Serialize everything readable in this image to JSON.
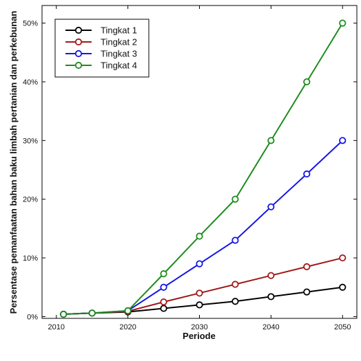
{
  "chart_data": {
    "type": "line",
    "xlabel": "Periode",
    "ylabel": "Persentase pemanfaatan bahan baku limbah pertanian dan perkebunan",
    "xlim": [
      2008,
      2052
    ],
    "ylim": [
      -0.3,
      53
    ],
    "xticks": [
      2010,
      2020,
      2030,
      2040,
      2050
    ],
    "yticks": [
      0,
      10,
      20,
      30,
      40,
      50
    ],
    "ytick_labels": [
      "0%",
      "10%",
      "20%",
      "30%",
      "40%",
      "50%"
    ],
    "legend_position": "top-left",
    "grid": false,
    "series": [
      {
        "name": "Tingkat 1",
        "color": "#000000",
        "x": [
          2011,
          2015,
          2020,
          2025,
          2030,
          2035,
          2040,
          2045,
          2050
        ],
        "values": [
          0.4,
          0.6,
          0.8,
          1.4,
          2.0,
          2.6,
          3.4,
          4.2,
          5.0
        ]
      },
      {
        "name": "Tingkat 2",
        "color": "#a01818",
        "x": [
          2011,
          2015,
          2020,
          2025,
          2030,
          2035,
          2040,
          2045,
          2050
        ],
        "values": [
          0.4,
          0.6,
          0.9,
          2.5,
          4.0,
          5.5,
          7.0,
          8.5,
          10.0
        ]
      },
      {
        "name": "Tingkat 3",
        "color": "#1515e6",
        "x": [
          2011,
          2015,
          2020,
          2025,
          2030,
          2035,
          2040,
          2045,
          2050
        ],
        "values": [
          0.4,
          0.6,
          1.0,
          5.0,
          9.0,
          13.0,
          18.7,
          24.3,
          30.0
        ]
      },
      {
        "name": "Tingkat 4",
        "color": "#1c8c1c",
        "x": [
          2011,
          2015,
          2020,
          2025,
          2030,
          2035,
          2040,
          2045,
          2050
        ],
        "values": [
          0.4,
          0.6,
          1.0,
          7.3,
          13.7,
          20.0,
          30.0,
          40.0,
          50.0
        ]
      }
    ]
  }
}
